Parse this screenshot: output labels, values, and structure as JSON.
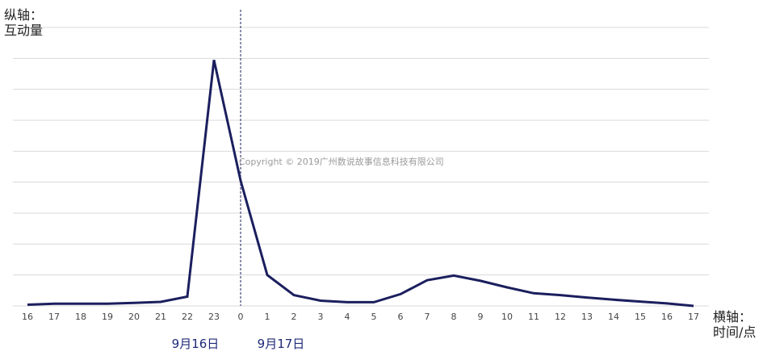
{
  "chart_data": {
    "type": "line",
    "ylabel_lines": [
      "纵轴：",
      "互动量"
    ],
    "xlabel_lines": [
      "横轴：",
      "时间/点"
    ],
    "categories": [
      "16",
      "17",
      "18",
      "19",
      "20",
      "21",
      "22",
      "23",
      "0",
      "1",
      "2",
      "3",
      "4",
      "5",
      "6",
      "7",
      "8",
      "9",
      "10",
      "11",
      "12",
      "13",
      "14",
      "15",
      "16",
      "17"
    ],
    "series": [
      {
        "values": [
          0.4,
          0.7,
          0.7,
          0.7,
          1.0,
          1.3,
          3.0,
          79.5,
          40.5,
          10.0,
          3.5,
          1.7,
          1.2,
          1.2,
          3.8,
          8.3,
          9.8,
          8.1,
          6.0,
          4.1,
          3.5,
          2.7,
          2.0,
          1.4,
          0.8,
          0.0
        ],
        "color": "#1b1f5e"
      }
    ],
    "ylim": [
      0,
      90
    ],
    "y_gridlines": 9,
    "grid": true,
    "day_divider_after_category": "23",
    "date_labels": [
      "9月16日",
      "9月17日"
    ],
    "watermark": "Copyright © 2019广州数说故事信息科技有限公司"
  }
}
